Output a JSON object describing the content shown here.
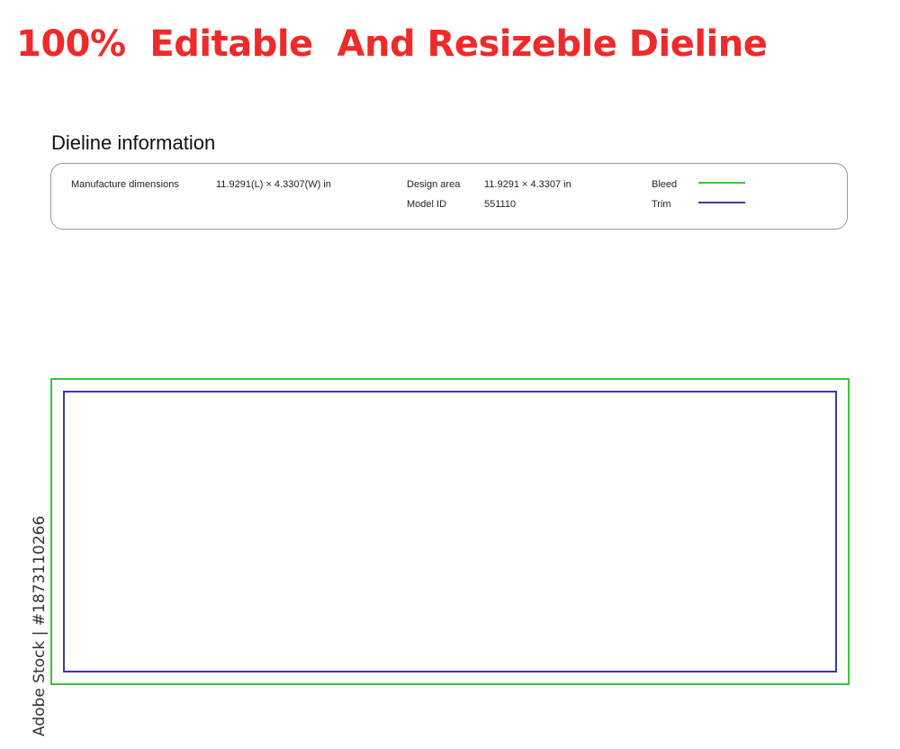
{
  "headline": "100%  Editable  And Resizeble Dieline",
  "info": {
    "title": "Dieline information",
    "manufacture_label": "Manufacture dimensions",
    "manufacture_value": "11.9291(L) × 4.3307(W) in",
    "design_label": "Design area",
    "design_value": "11.9291 × 4.3307 in",
    "model_label": "Model ID",
    "model_value": "551110",
    "bleed_label": "Bleed",
    "trim_label": "Trim"
  },
  "colors": {
    "bleed": "#3cc43c",
    "trim": "#3a3a9a",
    "headline": "#ee2a2a"
  },
  "watermark": "Adobe Stock | #1873110266"
}
